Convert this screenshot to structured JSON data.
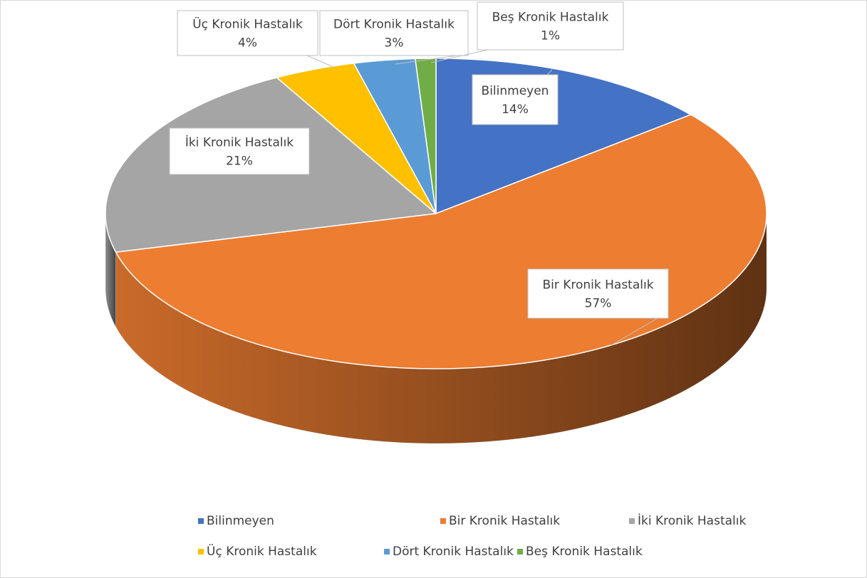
{
  "chart_data": {
    "type": "pie3d",
    "categories": [
      "Bilinmeyen",
      "Bir Kronik Hastalık",
      "İki Kronik Hastalık",
      "Üç Kronik Hastalık",
      "Dört Kronik Hastalık",
      "Beş Kronik Hastalık"
    ],
    "values": [
      14,
      57,
      21,
      4,
      3,
      1
    ],
    "value_labels": [
      "14%",
      "57%",
      "21%",
      "4%",
      "3%",
      "1%"
    ],
    "colors": [
      "#4472c4",
      "#ed7d31",
      "#a5a5a5",
      "#ffc000",
      "#5b9bd5",
      "#70ad47"
    ],
    "legend": "bottom"
  }
}
